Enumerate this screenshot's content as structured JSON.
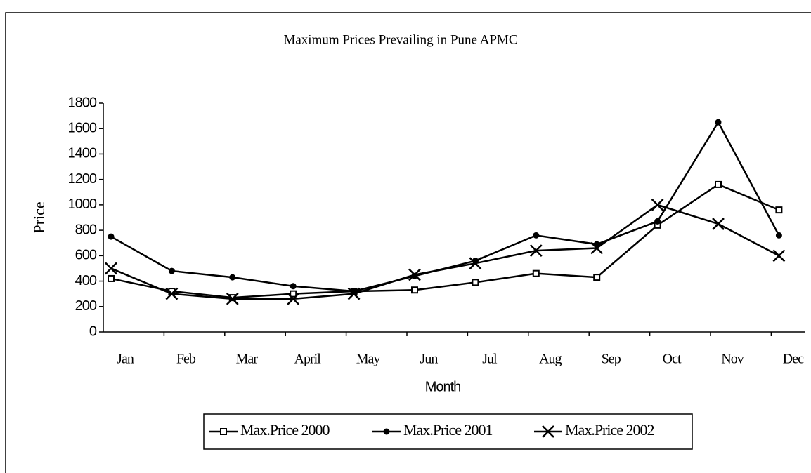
{
  "chart_data": {
    "type": "line",
    "title": "Maximum Prices Prevailing in Pune APMC",
    "x_label": "Month",
    "y_label": "Price",
    "categories": [
      "Jan",
      "Feb",
      "Mar",
      "April",
      "May",
      "Jun",
      "Jul",
      "Aug",
      "Sep",
      "Oct",
      "Nov",
      "Dec"
    ],
    "series": [
      {
        "name": "Max.Price 2000",
        "color": "#000000",
        "marker": "square",
        "values": [
          420,
          320,
          270,
          300,
          320,
          330,
          390,
          460,
          430,
          840,
          1160,
          960
        ]
      },
      {
        "name": "Max.Price 2001",
        "color": "#000000",
        "marker": "circle",
        "values": [
          750,
          480,
          430,
          360,
          320,
          440,
          560,
          760,
          690,
          870,
          1650,
          760
        ]
      },
      {
        "name": "Max.Price 2002",
        "color": "#000000",
        "marker": "x",
        "values": [
          500,
          300,
          260,
          260,
          300,
          450,
          540,
          640,
          660,
          1000,
          850,
          600
        ]
      }
    ],
    "ylim": [
      0,
      1800
    ],
    "yticks": [
      0,
      200,
      400,
      600,
      800,
      1000,
      1200,
      1400,
      1600,
      1800
    ],
    "legend": "bottom"
  }
}
